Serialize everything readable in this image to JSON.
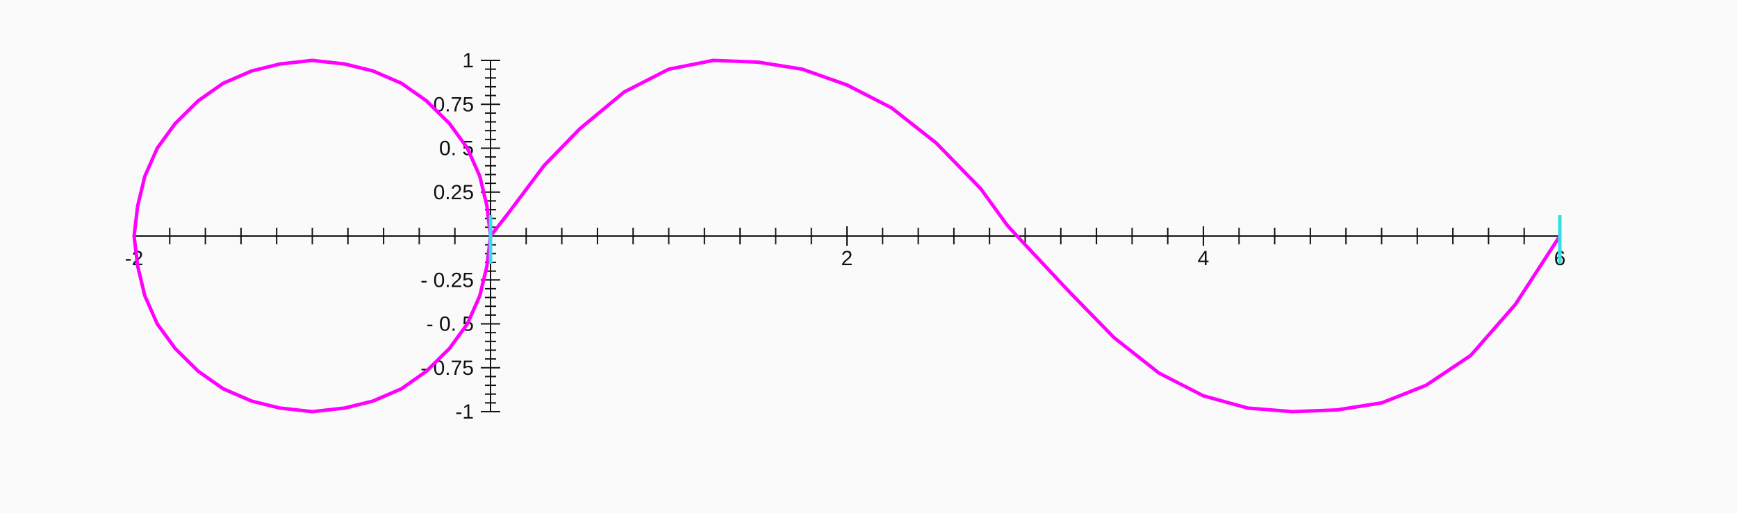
{
  "chart_data": {
    "type": "line",
    "title": "",
    "xlabel": "",
    "ylabel": "",
    "xlim": [
      -2,
      6
    ],
    "ylim": [
      -1,
      1
    ],
    "x_tick_labels": [
      "-2",
      "2",
      "4",
      "6"
    ],
    "x_tick_values": [
      -2,
      2,
      4,
      6
    ],
    "y_tick_labels": [
      "1",
      "0.75",
      "0. 5",
      "0.25",
      "- 0.25",
      "- 0. 5",
      "- 0.75",
      "-1"
    ],
    "y_tick_values": [
      1,
      0.75,
      0.5,
      0.25,
      -0.25,
      -0.5,
      -0.75,
      -1
    ],
    "grid": false,
    "series": [
      {
        "color": "#ff00ff",
        "x": [
          0.0,
          -0.02,
          -0.06,
          -0.13,
          -0.23,
          -0.36,
          -0.5,
          -0.66,
          -0.82,
          -1.0,
          -1.18,
          -1.34,
          -1.5,
          -1.64,
          -1.77,
          -1.87,
          -1.94,
          -1.98,
          -2.0,
          -1.98,
          -1.94,
          -1.87,
          -1.77,
          -1.64,
          -1.5,
          -1.34,
          -1.18,
          -1.0,
          -0.82,
          -0.66,
          -0.5,
          -0.36,
          -0.23,
          -0.13,
          -0.06,
          -0.02,
          0.0,
          0.1,
          0.3,
          0.5,
          0.75,
          1.0,
          1.25,
          1.5,
          1.75,
          2.0,
          2.25,
          2.5,
          2.75,
          2.9,
          3.0,
          3.25,
          3.5,
          3.75,
          4.0,
          4.25,
          4.5,
          4.75,
          5.0,
          5.25,
          5.5,
          5.75,
          6.0
        ],
        "y": [
          0.0,
          0.17,
          0.34,
          0.5,
          0.64,
          0.77,
          0.87,
          0.94,
          0.98,
          1.0,
          0.98,
          0.94,
          0.87,
          0.77,
          0.64,
          0.5,
          0.34,
          0.17,
          0.0,
          -0.17,
          -0.34,
          -0.5,
          -0.64,
          -0.77,
          -0.87,
          -0.94,
          -0.98,
          -1.0,
          -0.98,
          -0.94,
          -0.87,
          -0.77,
          -0.64,
          -0.5,
          -0.34,
          -0.17,
          0.0,
          0.13,
          0.4,
          0.61,
          0.82,
          0.95,
          1.0,
          0.99,
          0.95,
          0.86,
          0.73,
          0.53,
          0.27,
          0.06,
          -0.05,
          -0.32,
          -0.58,
          -0.78,
          -0.91,
          -0.98,
          -1.0,
          -0.99,
          -0.95,
          -0.85,
          -0.68,
          -0.39,
          0.0
        ]
      }
    ],
    "markers": [
      {
        "color": "#33e0e6",
        "x": 0
      },
      {
        "color": "#33e0e6",
        "x": 6
      }
    ]
  }
}
